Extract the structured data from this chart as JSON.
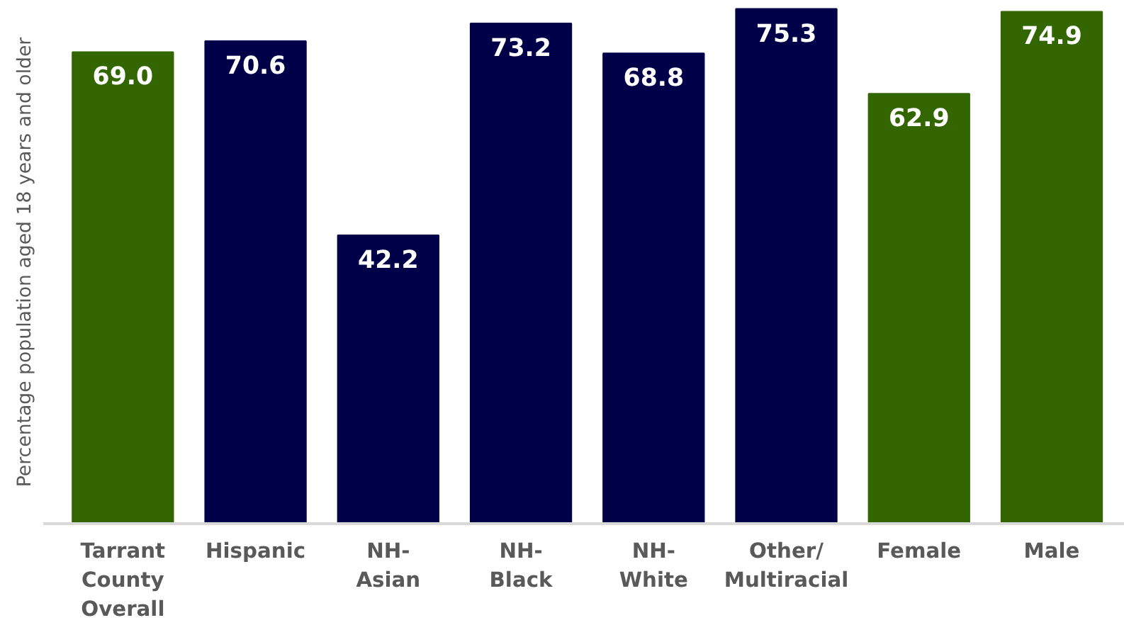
{
  "chart_data": {
    "type": "bar",
    "ylabel": "Percentage population aged 18 years and older",
    "categories": [
      "Tarrant County Overall",
      "Hispanic",
      "NH-Asian",
      "NH-Black",
      "NH-White",
      "Other/Multiracial",
      "Female",
      "Male"
    ],
    "values": [
      69.0,
      70.6,
      42.2,
      73.2,
      68.8,
      75.3,
      62.9,
      74.9
    ],
    "colors": [
      "#336600",
      "#000048",
      "#000048",
      "#000048",
      "#000048",
      "#000048",
      "#336600",
      "#336600"
    ],
    "value_labels": [
      "69.0",
      "70.6",
      "42.2",
      "73.2",
      "68.8",
      "75.3",
      "62.9",
      "74.9"
    ],
    "grid": false
  }
}
